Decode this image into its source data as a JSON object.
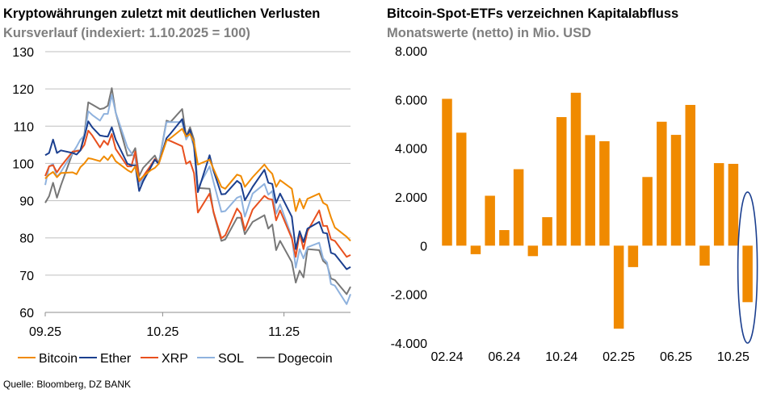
{
  "left": {
    "title": "Kryptowährungen zuletzt mit deutlichen Verlusten",
    "subtitle": "Kursverlauf (indexiert: 1.10.2025 = 100)"
  },
  "right": {
    "title": "Bitcoin-Spot-ETFs verzeichnen Kapitalabfluss",
    "subtitle": "Monatswerte (netto) in Mio. USD"
  },
  "source": "Quelle: Bloomberg, DZ BANK",
  "chart_data": [
    {
      "type": "line",
      "title": "Kryptowährungen zuletzt mit deutlichen Verlusten",
      "subtitle": "Kursverlauf (indexiert: 1.10.2025 = 100)",
      "ylim": [
        60,
        130
      ],
      "yticks": [
        "130",
        "120",
        "110",
        "100",
        "90",
        "80",
        "70",
        "60"
      ],
      "xlim": [
        "2025-09-01",
        "2025-11-18"
      ],
      "xticks": [
        {
          "date": "2025-09-01",
          "label": "09.25"
        },
        {
          "date": "2025-10-01",
          "label": "10.25"
        },
        {
          "date": "2025-11-01",
          "label": "11.25"
        }
      ],
      "grid": "horizontal",
      "legend": "bottom",
      "x": [
        "2025-09-01",
        "2025-09-02",
        "2025-09-03",
        "2025-09-04",
        "2025-09-05",
        "2025-09-08",
        "2025-09-09",
        "2025-09-10",
        "2025-09-11",
        "2025-09-12",
        "2025-09-13",
        "2025-09-15",
        "2025-09-16",
        "2025-09-17",
        "2025-09-18",
        "2025-09-19",
        "2025-09-22",
        "2025-09-23",
        "2025-09-24",
        "2025-09-25",
        "2025-09-26",
        "2025-09-28",
        "2025-09-29",
        "2025-09-30",
        "2025-10-02",
        "2025-10-03",
        "2025-10-06",
        "2025-10-07",
        "2025-10-08",
        "2025-10-09",
        "2025-10-10",
        "2025-10-13",
        "2025-10-14",
        "2025-10-16",
        "2025-10-17",
        "2025-10-20",
        "2025-10-21",
        "2025-10-22",
        "2025-10-24",
        "2025-10-27",
        "2025-10-28",
        "2025-10-29",
        "2025-10-30",
        "2025-10-31",
        "2025-11-03",
        "2025-11-04",
        "2025-11-05",
        "2025-11-06",
        "2025-11-07",
        "2025-11-10",
        "2025-11-11",
        "2025-11-12",
        "2025-11-13",
        "2025-11-14",
        "2025-11-17",
        "2025-11-18"
      ],
      "series": [
        {
          "name": "Bitcoin",
          "color": "#F08A00",
          "values": [
            95.9,
            97,
            97.7,
            96.3,
            97.4,
            97.6,
            97.1,
            99,
            100,
            101.4,
            101.2,
            100.6,
            101.9,
            100.9,
            102.4,
            100.6,
            98.2,
            97.6,
            99.2,
            95.5,
            96.5,
            98.2,
            98.8,
            99.9,
            106.1,
            106.8,
            109.3,
            107.2,
            107.9,
            105.7,
            99.7,
            101,
            98.5,
            93.7,
            93.2,
            97,
            96.6,
            93.7,
            96.3,
            99.7,
            98.3,
            97.2,
            93.7,
            95.5,
            93.2,
            87.2,
            90.5,
            87.9,
            90.5,
            91.9,
            89.4,
            88.8,
            85.5,
            82.8,
            80.3,
            79.2
          ]
        },
        {
          "name": "Ether",
          "color": "#1B3F8F",
          "values": [
            102.2,
            102.8,
            106.4,
            102.8,
            103.5,
            102.8,
            102.4,
            103.5,
            107.2,
            111.3,
            109.7,
            107.5,
            107.3,
            107.2,
            109.7,
            106.4,
            99.9,
            99.5,
            99.5,
            92.6,
            95.2,
            99,
            101,
            99.9,
            106.8,
            108,
            111.9,
            107.2,
            109,
            105,
            92.3,
            102.2,
            98,
            91.7,
            91.8,
            95.3,
            94.5,
            90.1,
            93.7,
            98.3,
            94.8,
            94.5,
            89.4,
            91.9,
            85.7,
            77,
            81.8,
            78.9,
            82.5,
            84.3,
            81.4,
            81.2,
            76,
            75.6,
            71.6,
            72.2
          ]
        },
        {
          "name": "XRP",
          "color": "#E8501E",
          "values": [
            96.6,
            99.2,
            99.5,
            97.6,
            99.2,
            103.2,
            103.3,
            103.5,
            105,
            108.8,
            107.5,
            104.3,
            106.1,
            105,
            107.9,
            103.9,
            99.2,
            99.2,
            103.2,
            95.2,
            96.5,
            99.5,
            101.2,
            99.9,
            106.4,
            106,
            104.6,
            99.9,
            100.6,
            97.4,
            86.8,
            91.9,
            87,
            79.9,
            80.7,
            87.9,
            86.5,
            82.1,
            87.6,
            91.3,
            90.5,
            90.3,
            84.7,
            87.4,
            79.9,
            74.9,
            81.4,
            77,
            81.8,
            87.4,
            83.2,
            83.2,
            79.6,
            79.2,
            74.9,
            75.4
          ]
        },
        {
          "name": "SOL",
          "color": "#8FB2DE",
          "values": [
            94.2,
            99.2,
            99.9,
            96.3,
            97.7,
            102.8,
            104.5,
            106.4,
            107.5,
            114,
            113,
            111.5,
            113.3,
            113.3,
            118.4,
            113.7,
            104.3,
            102.8,
            101.4,
            94.1,
            96,
            99,
            101,
            99.9,
            111.1,
            111.1,
            111.1,
            106.4,
            108.2,
            104.3,
            93.4,
            99.2,
            95,
            87,
            87.2,
            90.8,
            91.2,
            85.7,
            91.9,
            94.5,
            91.6,
            92.6,
            86.5,
            89,
            80.3,
            72,
            77,
            74.5,
            77.5,
            78.7,
            74.5,
            73.4,
            67.6,
            67.2,
            62.2,
            64.9
          ]
        },
        {
          "name": "Dogecoin",
          "color": "#777777",
          "values": [
            89.4,
            91.2,
            94.8,
            90.8,
            94.1,
            102.8,
            103.4,
            103.5,
            107.9,
            116.4,
            115.8,
            114.6,
            114.8,
            115.5,
            120.2,
            113.7,
            102.1,
            102.2,
            104.1,
            96.6,
            98.8,
            101,
            102.1,
            99.9,
            111.5,
            111.1,
            114.6,
            107.2,
            109.7,
            106.4,
            93.4,
            93.2,
            86.8,
            79.2,
            79.6,
            85.4,
            85.4,
            81,
            84.3,
            86.1,
            82.5,
            83.6,
            76.7,
            79.2,
            73.5,
            68,
            71.2,
            69.4,
            77,
            76.7,
            73.8,
            72.9,
            69.1,
            68.7,
            64.9,
            66.9
          ]
        }
      ]
    },
    {
      "type": "bar",
      "title": "Bitcoin-Spot-ETFs verzeichnen Kapitalabfluss",
      "subtitle": "Monatswerte (netto) in Mio. USD",
      "ylim": [
        -4000,
        8000
      ],
      "yticks": [
        {
          "v": 8000,
          "label": "8.000"
        },
        {
          "v": 6000,
          "label": "6.000"
        },
        {
          "v": 4000,
          "label": "4.000"
        },
        {
          "v": 2000,
          "label": "2.000"
        },
        {
          "v": 0,
          "label": "0"
        },
        {
          "v": -2000,
          "label": "-2.000"
        },
        {
          "v": -4000,
          "label": "-4.000"
        }
      ],
      "grid": "none",
      "color": "#F08A00",
      "highlight": {
        "category": "11.25",
        "shape": "ellipse",
        "color": "#1B3F8F"
      },
      "categories": [
        "02.24",
        "03.24",
        "04.24",
        "05.24",
        "06.24",
        "07.24",
        "08.24",
        "09.24",
        "10.24",
        "11.24",
        "12.24",
        "01.25",
        "02.25",
        "03.25",
        "04.25",
        "05.25",
        "06.25",
        "07.25",
        "08.25",
        "09.25",
        "10.25",
        "11.25"
      ],
      "xtick_labels": [
        "02.24",
        "06.24",
        "10.24",
        "02.25",
        "06.25",
        "10.25"
      ],
      "values": [
        6030,
        4640,
        -350,
        2050,
        640,
        3140,
        -430,
        1170,
        5280,
        6280,
        4540,
        4290,
        -3410,
        -880,
        2820,
        5090,
        4550,
        5780,
        -820,
        3390,
        3360,
        -2320
      ]
    }
  ]
}
